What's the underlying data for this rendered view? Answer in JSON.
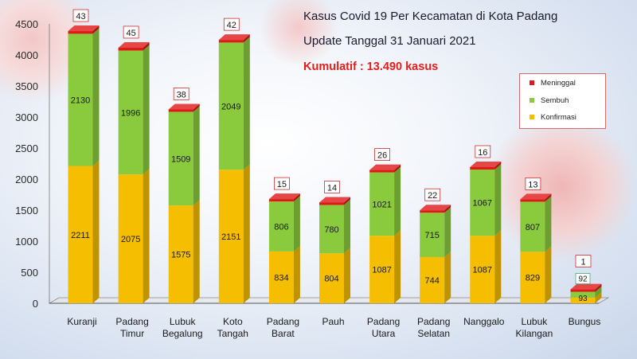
{
  "titles": {
    "line1": "Kasus Covid 19 Per Kecamatan di Kota Padang",
    "line2": "Update Tanggal 31 Januari 2021",
    "cumulative": "Kumulatif : 13.490 kasus"
  },
  "colors": {
    "confirmed": "#f5be00",
    "recovered": "#8acb3d",
    "died": "#e01818",
    "accent_text": "#e0201c"
  },
  "chart_data": {
    "type": "bar",
    "stacked": true,
    "categories": [
      "Kuranji",
      "Padang Timur",
      "Lubuk Begalung",
      "Koto Tangah",
      "Padang Barat",
      "Pauh",
      "Padang Utara",
      "Padang Selatan",
      "Nanggalo",
      "Lubuk Kilangan",
      "Bungus"
    ],
    "series": [
      {
        "name": "Konfirmasi",
        "values": [
          2211,
          2075,
          1575,
          2151,
          834,
          804,
          1087,
          744,
          1087,
          829,
          93
        ]
      },
      {
        "name": "Sembuh",
        "values": [
          2130,
          1996,
          1509,
          2049,
          806,
          780,
          1021,
          715,
          1067,
          807,
          92
        ]
      },
      {
        "name": "Meninggal",
        "values": [
          43,
          45,
          38,
          42,
          15,
          14,
          26,
          22,
          16,
          13,
          1
        ]
      }
    ],
    "ylim": [
      0,
      4500
    ],
    "yticks": [
      0,
      500,
      1000,
      1500,
      2000,
      2500,
      3000,
      3500,
      4000,
      4500
    ],
    "legend": [
      "Meninggal",
      "Sembuh",
      "Konfirmasi"
    ],
    "legend_position": "right"
  }
}
